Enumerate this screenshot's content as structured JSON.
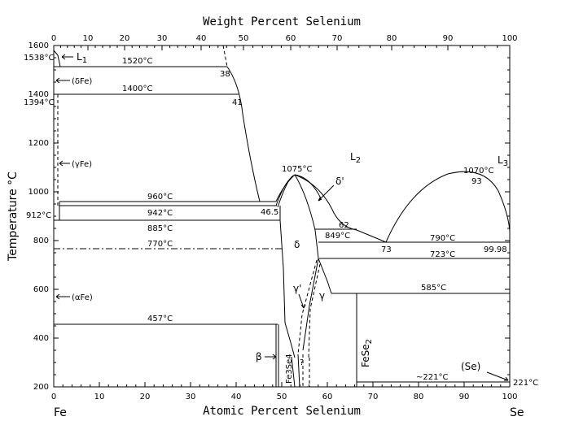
{
  "axes": {
    "top_title": "Weight Percent Selenium",
    "bottom_title": "Atomic Percent Selenium",
    "y_title": "Temperature °C",
    "x_ticks": [
      "0",
      "10",
      "20",
      "30",
      "40",
      "50",
      "60",
      "70",
      "80",
      "90",
      "100"
    ],
    "y_ticks": [
      "200",
      "400",
      "600",
      "800",
      "1000",
      "1200",
      "1400",
      "1600"
    ],
    "element_left": "Fe",
    "element_right": "Se"
  },
  "isotherms": {
    "t1538": "1538°C",
    "t1520": "1520°C",
    "t1400": "1400°C",
    "t1394": "1394°C",
    "t960": "960°C",
    "t942": "942°C",
    "t912": "912°C",
    "t885": "885°C",
    "t770": "770°C",
    "t457": "457°C",
    "t1075": "1075°C",
    "t849": "849°C",
    "t1070": "1070°C",
    "t790": "790°C",
    "t723": "723°C",
    "t585": "585°C",
    "t221": "~221°C",
    "t221r": "221°C"
  },
  "compositions": {
    "c38": "38",
    "c41": "41",
    "c465": "46.5",
    "c62": "62",
    "c73": "73",
    "c93": "93",
    "c9998": "99.98"
  },
  "phases": {
    "l1": "L",
    "l1_sub": "1",
    "l2": "L",
    "l2_sub": "2",
    "l3": "L",
    "l3_sub": "3",
    "delta_fe": "(δFe)",
    "gamma_fe": "(γFe)",
    "alpha_fe": "(αFe)",
    "delta": "δ",
    "delta_prime": "δ'",
    "gamma": "γ",
    "gamma_prime": "γ'",
    "beta": "β",
    "fe3se4": "Fe3Se4",
    "fese2": "FeSe",
    "fese2_sub": "2",
    "se": "(Se)",
    "question": "?"
  },
  "chart_data": {
    "type": "phase-diagram",
    "xlabel": "Atomic Percent Selenium",
    "x2label": "Weight Percent Selenium",
    "ylabel": "Temperature °C",
    "xlim": [
      0,
      100
    ],
    "ylim": [
      200,
      1600
    ],
    "invariants": [
      {
        "label": "1538°C",
        "temperature": 1538
      },
      {
        "label": "1520°C",
        "temperature": 1520
      },
      {
        "label": "1400°C",
        "temperature": 1400
      },
      {
        "label": "1394°C",
        "temperature": 1394
      },
      {
        "label": "960°C",
        "temperature": 960
      },
      {
        "label": "942°C",
        "temperature": 942
      },
      {
        "label": "912°C",
        "temperature": 912
      },
      {
        "label": "885°C",
        "temperature": 885
      },
      {
        "label": "770°C",
        "temperature": 770
      },
      {
        "label": "457°C",
        "temperature": 457
      },
      {
        "label": "1075°C",
        "temperature": 1075
      },
      {
        "label": "849°C",
        "temperature": 849
      },
      {
        "label": "1070°C",
        "temperature": 1070
      },
      {
        "label": "790°C",
        "temperature": 790
      },
      {
        "label": "723°C",
        "temperature": 723
      },
      {
        "label": "585°C",
        "temperature": 585
      },
      {
        "label": "~221°C",
        "temperature": 221
      },
      {
        "label": "221°C",
        "temperature": 221
      }
    ],
    "special_compositions_at_pct": [
      38,
      41,
      46.5,
      62,
      73,
      93,
      99.98
    ]
  }
}
